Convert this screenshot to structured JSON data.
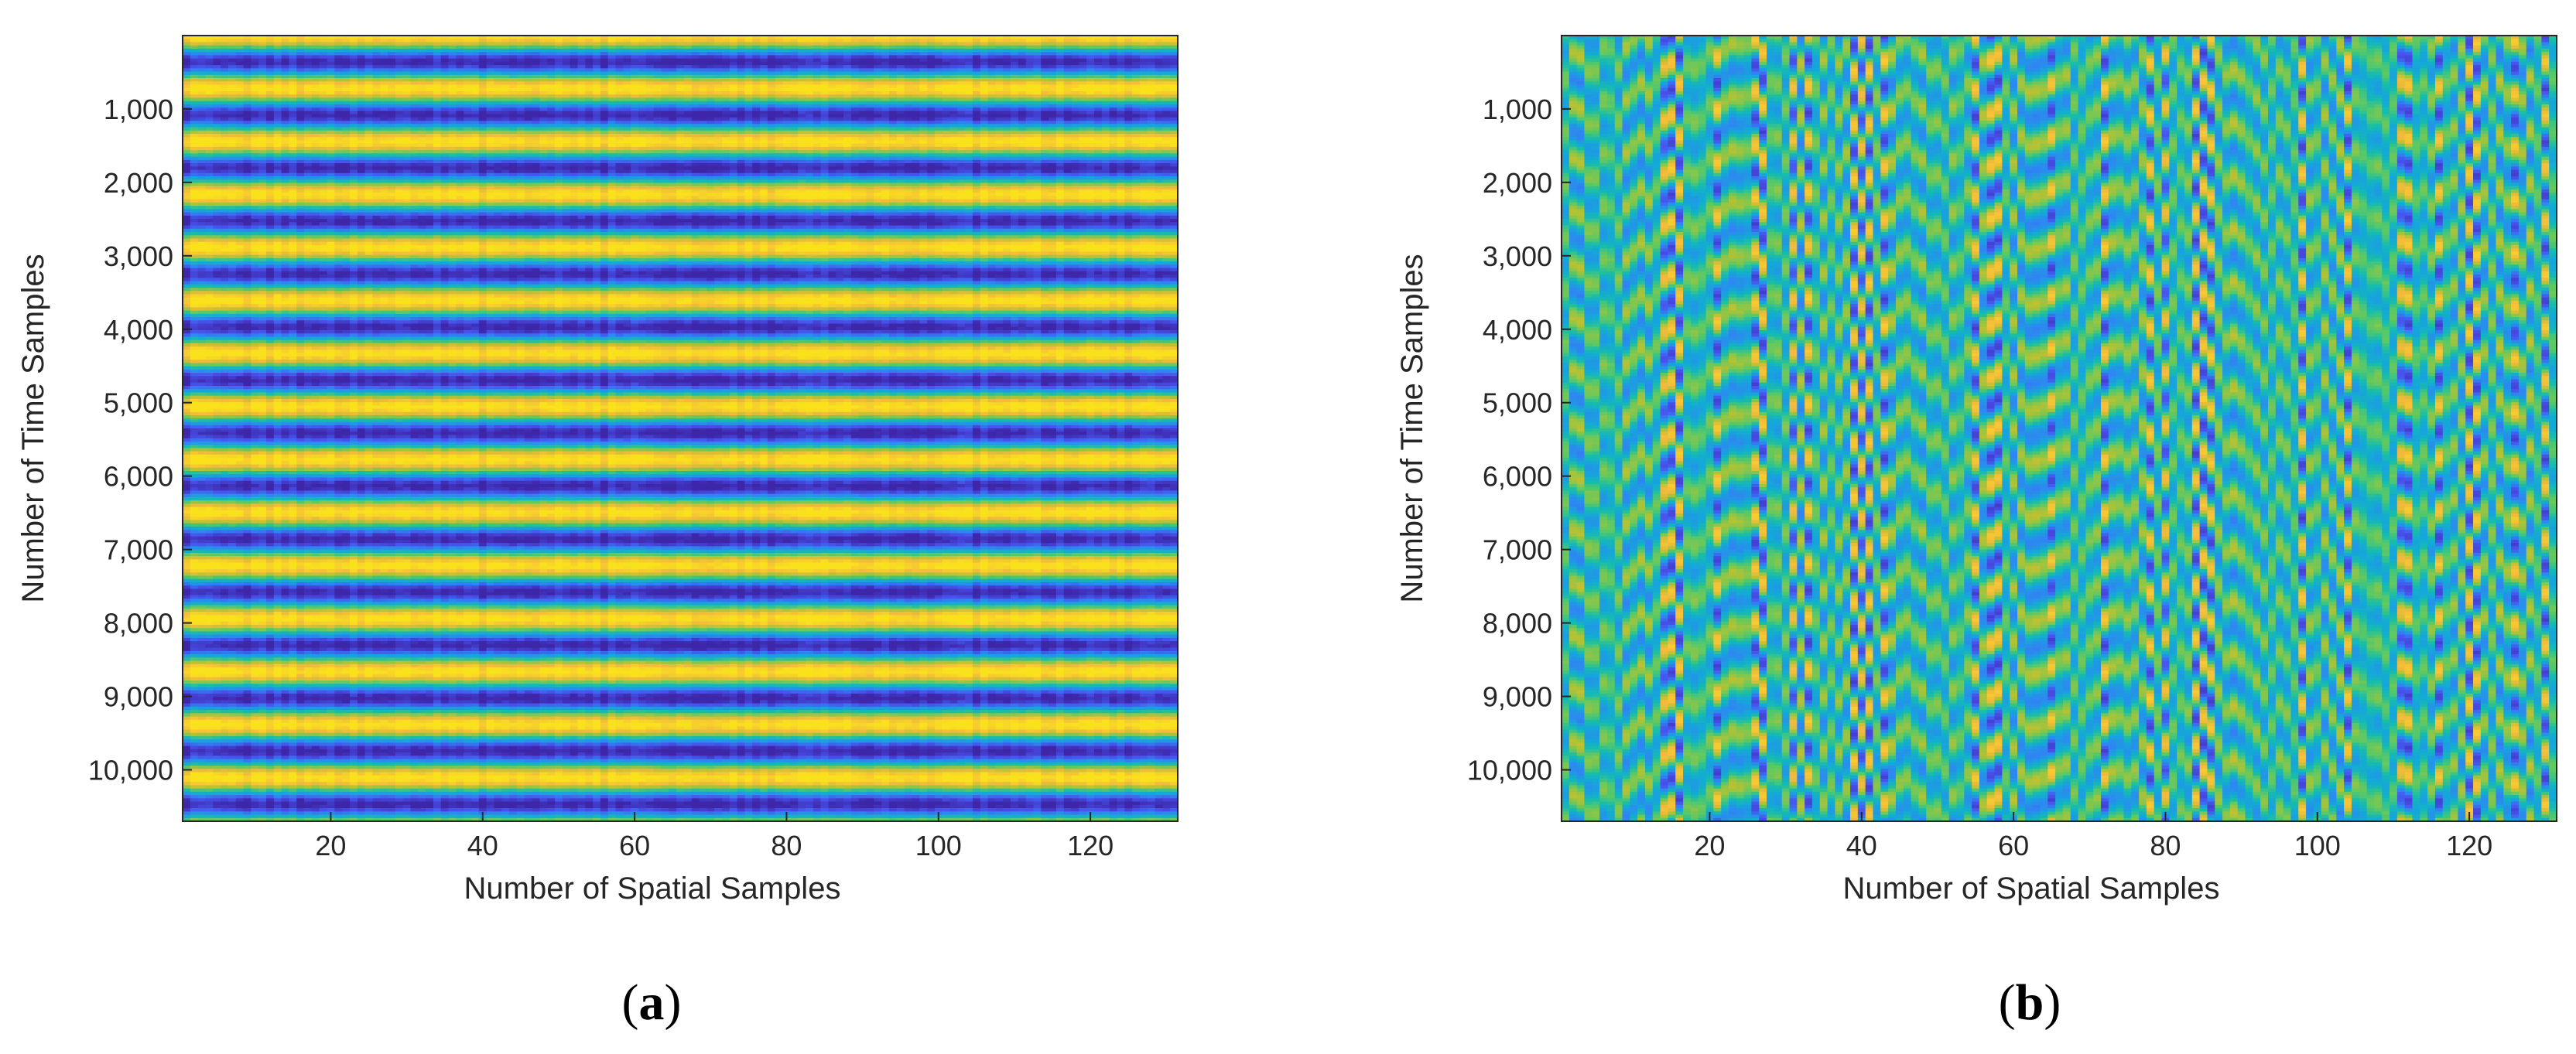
{
  "chart_data": [
    {
      "type": "heatmap",
      "panel_label": "a",
      "xlabel": "Number of Spatial Samples",
      "ylabel": "Number of Time Samples",
      "xlim": [
        1,
        131
      ],
      "ylim": [
        1,
        10700
      ],
      "y_reversed": true,
      "x_ticks": [
        20,
        40,
        60,
        80,
        100,
        120
      ],
      "x_tick_labels": [
        "20",
        "40",
        "60",
        "80",
        "100",
        "120"
      ],
      "y_ticks": [
        1000,
        2000,
        3000,
        4000,
        5000,
        6000,
        7000,
        8000,
        9000,
        10000
      ],
      "y_tick_labels": [
        "1,000",
        "2,000",
        "3,000",
        "4,000",
        "5,000",
        "6,000",
        "7,000",
        "8,000",
        "9,000",
        "10,000"
      ],
      "colormap": "parula",
      "pattern": "horizontal bands",
      "band_period_time_samples": 722,
      "band_phase_time_samples": 0,
      "column_variation": 0.12
    },
    {
      "type": "heatmap",
      "panel_label": "b",
      "xlabel": "Number of Spatial Samples",
      "ylabel": "Number of Time Samples",
      "xlim": [
        1,
        131
      ],
      "ylim": [
        1,
        10700
      ],
      "y_reversed": true,
      "x_ticks": [
        20,
        40,
        60,
        80,
        100,
        120
      ],
      "x_tick_labels": [
        "20",
        "40",
        "60",
        "80",
        "100",
        "120"
      ],
      "y_ticks": [
        1000,
        2000,
        3000,
        4000,
        5000,
        6000,
        7000,
        8000,
        9000,
        10000
      ],
      "y_tick_labels": [
        "1,000",
        "2,000",
        "3,000",
        "4,000",
        "5,000",
        "6,000",
        "7,000",
        "8,000",
        "9,000",
        "10,000"
      ],
      "colormap": "parula",
      "pattern": "vertical stripes with periodic time modulation",
      "band_period_time_samples": 722,
      "bright_columns": [
        15,
        16,
        21,
        26,
        27,
        33,
        39,
        41,
        43,
        55,
        57,
        58,
        65,
        72,
        78,
        84,
        85,
        86,
        98,
        104,
        112,
        116,
        120,
        121,
        126,
        130
      ],
      "dark_columns": [
        14,
        31,
        40,
        58,
        80,
        104,
        111,
        120
      ]
    }
  ],
  "colors": {
    "parula_stops": [
      "#3e26a8",
      "#4754ee",
      "#2f86f2",
      "#14a8d8",
      "#17bdaa",
      "#5ec962",
      "#b7c232",
      "#f4ba3d",
      "#f9e21c"
    ],
    "axis": "#262626",
    "background": "#ffffff"
  }
}
